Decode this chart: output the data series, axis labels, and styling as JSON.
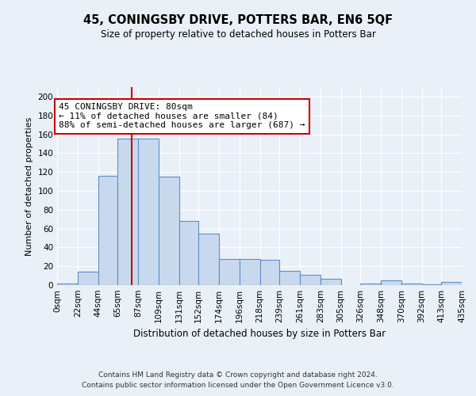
{
  "title": "45, CONINGSBY DRIVE, POTTERS BAR, EN6 5QF",
  "subtitle": "Size of property relative to detached houses in Potters Bar",
  "xlabel": "Distribution of detached houses by size in Potters Bar",
  "ylabel": "Number of detached properties",
  "footnote1": "Contains HM Land Registry data © Crown copyright and database right 2024.",
  "footnote2": "Contains public sector information licensed under the Open Government Licence v3.0.",
  "bin_labels": [
    "0sqm",
    "22sqm",
    "44sqm",
    "65sqm",
    "87sqm",
    "109sqm",
    "131sqm",
    "152sqm",
    "174sqm",
    "196sqm",
    "218sqm",
    "239sqm",
    "261sqm",
    "283sqm",
    "305sqm",
    "326sqm",
    "348sqm",
    "370sqm",
    "392sqm",
    "413sqm",
    "435sqm"
  ],
  "bar_heights": [
    2,
    14,
    116,
    155,
    155,
    115,
    68,
    55,
    28,
    28,
    27,
    15,
    11,
    7,
    0,
    2,
    5,
    2,
    1,
    3
  ],
  "bar_color": "#c9d9ed",
  "bar_edge_color": "#5b8fc9",
  "vline_x": 80,
  "ylim": [
    0,
    210
  ],
  "yticks": [
    0,
    20,
    40,
    60,
    80,
    100,
    120,
    140,
    160,
    180,
    200
  ],
  "annotation_title": "45 CONINGSBY DRIVE: 80sqm",
  "annotation_line1": "← 11% of detached houses are smaller (84)",
  "annotation_line2": "88% of semi-detached houses are larger (687) →",
  "annotation_box_color": "#ffffff",
  "annotation_box_edge": "#cc0000",
  "vline_color": "#cc0000",
  "background_color": "#eaf0f8",
  "plot_bg_color": "#eaf0f8",
  "grid_color": "#ffffff",
  "bin_edges": [
    0,
    22,
    44,
    65,
    87,
    109,
    131,
    152,
    174,
    196,
    218,
    239,
    261,
    283,
    305,
    326,
    348,
    370,
    392,
    413,
    435
  ]
}
